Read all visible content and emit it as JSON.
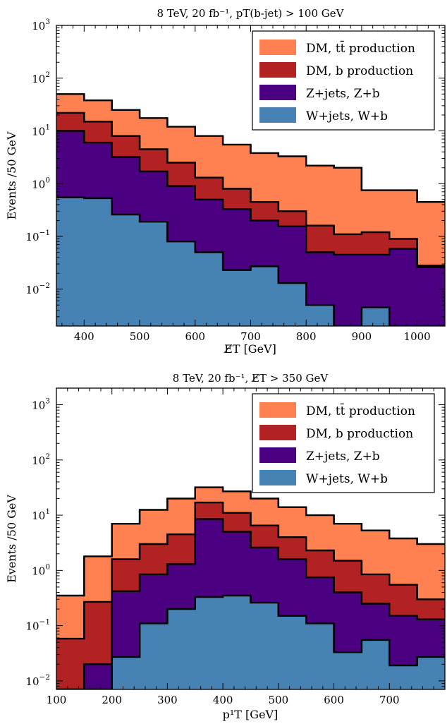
{
  "chart_data": [
    {
      "type": "histogram-stacked",
      "title": "8 TeV, 20 fb⁻¹, pT(b-jet) > 100 GeV",
      "xlabel": "E̸T [GeV]",
      "ylabel": "Events /50 GeV",
      "yscale": "log",
      "xlim": [
        350,
        1050
      ],
      "ylim": [
        0.002,
        1000
      ],
      "bin_edges": [
        350,
        400,
        450,
        500,
        550,
        600,
        650,
        700,
        750,
        800,
        850,
        900,
        950,
        1000,
        1050
      ],
      "x_ticks": [
        {
          "v": 400,
          "label": "400"
        },
        {
          "v": 500,
          "label": "500"
        },
        {
          "v": 600,
          "label": "600"
        },
        {
          "v": 700,
          "label": "700"
        },
        {
          "v": 800,
          "label": "800"
        },
        {
          "v": 900,
          "label": "900"
        },
        {
          "v": 1000,
          "label": "1000"
        }
      ],
      "y_ticks": [
        {
          "v": 0.01,
          "base": "10",
          "exp": "−2"
        },
        {
          "v": 0.1,
          "base": "10",
          "exp": "−1"
        },
        {
          "v": 1,
          "base": "10",
          "exp": "0"
        },
        {
          "v": 10,
          "base": "10",
          "exp": "1"
        },
        {
          "v": 100,
          "base": "10",
          "exp": "2"
        },
        {
          "v": 1000,
          "base": "10",
          "exp": "3"
        }
      ],
      "legend_position": "top-right",
      "series": [
        {
          "name": "DM, tt̄ production",
          "color": "#ff8050",
          "cumulative": [
            50,
            38,
            25,
            17.5,
            12,
            8,
            5.5,
            3.8,
            3.3,
            2.2,
            2.0,
            0.75,
            0.75,
            0.45
          ]
        },
        {
          "name": "DM, b production",
          "color": "#b22222",
          "cumulative": [
            22,
            15,
            8,
            4.5,
            2.5,
            1.3,
            0.8,
            0.45,
            0.3,
            0.16,
            0.11,
            0.12,
            0.09,
            0.028
          ]
        },
        {
          "name": "Z+jets, Z+b",
          "color": "#4b0082",
          "cumulative": [
            10,
            6,
            3.2,
            1.7,
            0.9,
            0.5,
            0.33,
            0.2,
            0.155,
            0.05,
            0.045,
            0.045,
            0.058,
            0.026
          ]
        },
        {
          "name": "W+jets, W+b",
          "color": "#4682b4",
          "cumulative": [
            0.55,
            0.53,
            0.26,
            0.19,
            0.08,
            0.05,
            0.023,
            0.027,
            0.013,
            0.005,
            0.002,
            0.0045,
            0.002,
            0.002
          ]
        }
      ]
    },
    {
      "type": "histogram-stacked",
      "title": "8 TeV, 20 fb⁻¹, E̸T > 350 GeV",
      "xlabel": "p¹T [GeV]",
      "ylabel": "Events /50 GeV",
      "yscale": "log",
      "xlim": [
        100,
        800
      ],
      "ylim": [
        0.007,
        2000
      ],
      "bin_edges": [
        100,
        150,
        200,
        250,
        300,
        350,
        400,
        450,
        500,
        550,
        600,
        650,
        700,
        750,
        800
      ],
      "x_ticks": [
        {
          "v": 100,
          "label": "100"
        },
        {
          "v": 200,
          "label": "200"
        },
        {
          "v": 300,
          "label": "300"
        },
        {
          "v": 400,
          "label": "400"
        },
        {
          "v": 500,
          "label": "500"
        },
        {
          "v": 600,
          "label": "600"
        },
        {
          "v": 700,
          "label": "700"
        }
      ],
      "y_ticks": [
        {
          "v": 0.01,
          "base": "10",
          "exp": "−2"
        },
        {
          "v": 0.1,
          "base": "10",
          "exp": "−1"
        },
        {
          "v": 1,
          "base": "10",
          "exp": "0"
        },
        {
          "v": 10,
          "base": "10",
          "exp": "1"
        },
        {
          "v": 100,
          "base": "10",
          "exp": "2"
        },
        {
          "v": 1000,
          "base": "10",
          "exp": "3"
        }
      ],
      "legend_position": "top-right",
      "series": [
        {
          "name": "DM, tt̄ production",
          "color": "#ff8050",
          "cumulative": [
            0.35,
            1.8,
            7,
            12.5,
            20,
            32,
            27,
            20,
            14,
            10,
            7,
            5.3,
            3.8,
            3.0
          ]
        },
        {
          "name": "DM, b production",
          "color": "#b22222",
          "cumulative": [
            0.058,
            0.27,
            1.6,
            3,
            4.5,
            17,
            11,
            6.5,
            4,
            2.3,
            1.5,
            0.85,
            0.55,
            0.3
          ]
        },
        {
          "name": "Z+jets, Z+b",
          "color": "#4b0082",
          "cumulative": [
            0.007,
            0.02,
            0.42,
            0.85,
            1.3,
            8.5,
            5,
            2.6,
            1.6,
            0.75,
            0.4,
            0.25,
            0.15,
            0.13
          ]
        },
        {
          "name": "W+jets, W+b",
          "color": "#4682b4",
          "cumulative": [
            0.007,
            0.007,
            0.027,
            0.11,
            0.2,
            0.33,
            0.35,
            0.26,
            0.15,
            0.11,
            0.033,
            0.055,
            0.019,
            0.027
          ]
        }
      ]
    }
  ]
}
